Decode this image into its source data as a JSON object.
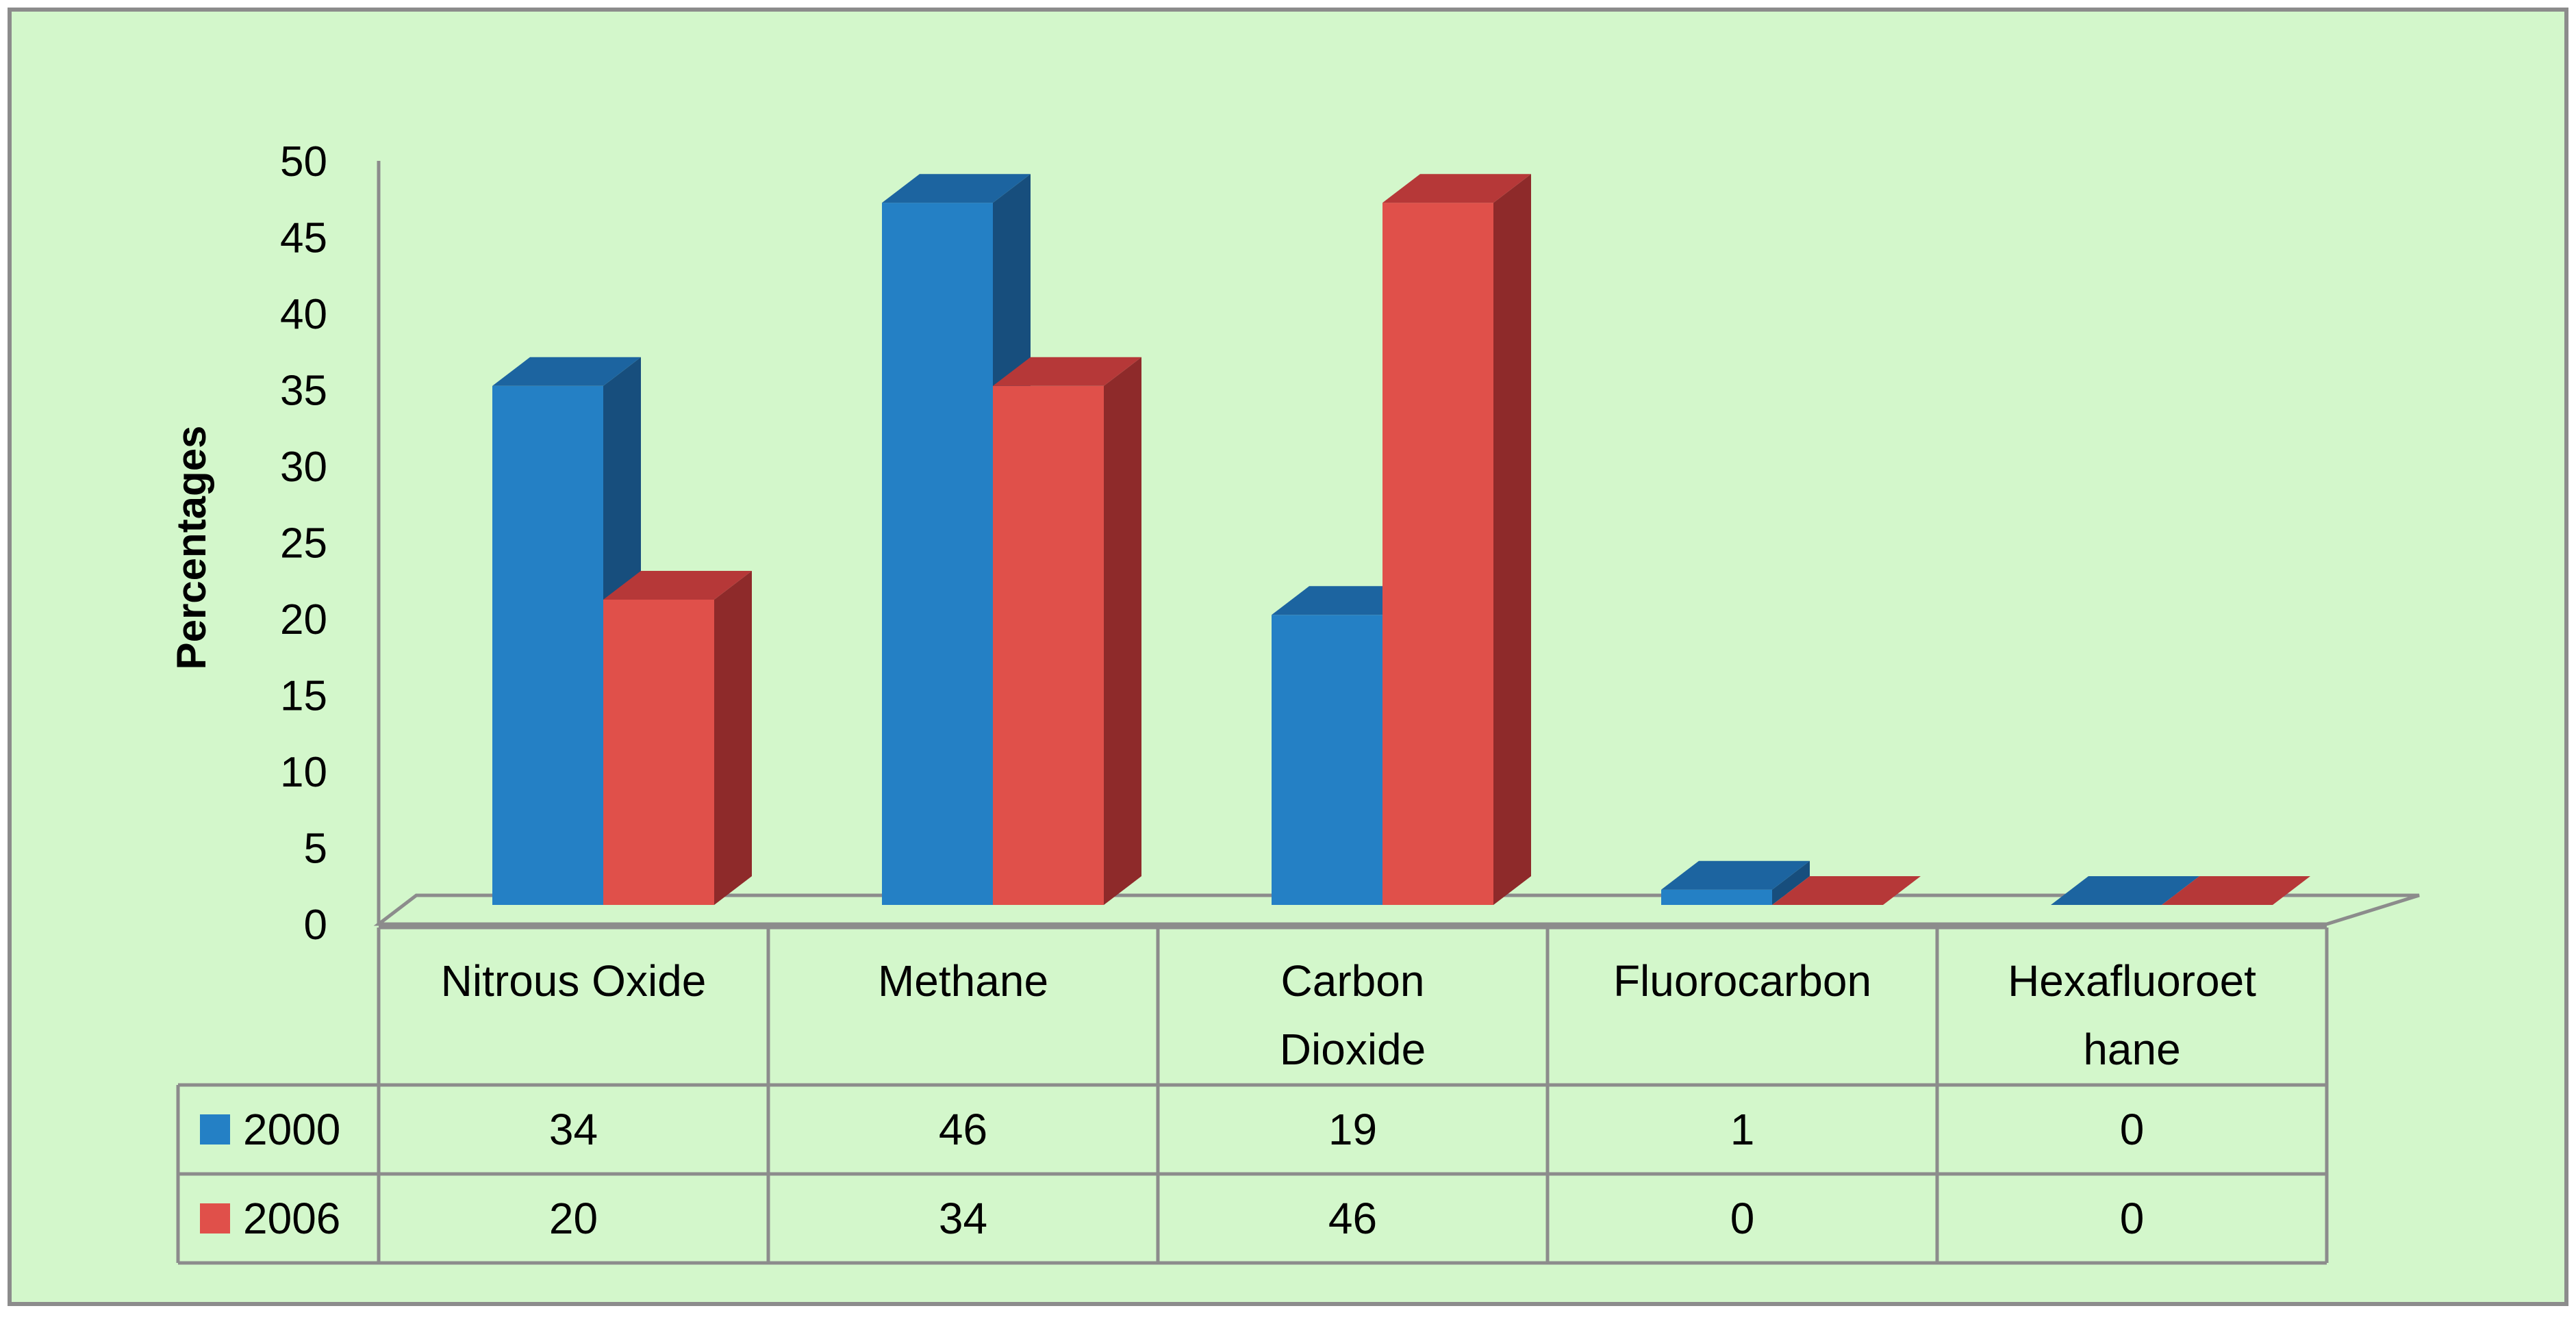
{
  "chart_data": {
    "type": "bar",
    "style": "3d-clustered-column-with-data-table",
    "title": "",
    "xlabel": "",
    "ylabel": "Percentages",
    "ylim": [
      0,
      50
    ],
    "yticks": [
      0,
      5,
      10,
      15,
      20,
      25,
      30,
      35,
      40,
      45,
      50
    ],
    "grid": false,
    "legend": "data-table-left",
    "categories": [
      [
        "Nitrous Oxide"
      ],
      [
        "Methane"
      ],
      [
        "Carbon",
        "Dioxide"
      ],
      [
        "Fluorocarbon"
      ],
      [
        "Hexafluoroet",
        "hane"
      ]
    ],
    "series": [
      {
        "name": "2000",
        "values": [
          34,
          46,
          19,
          1,
          0
        ],
        "color": "#2480c5",
        "side_color": "#174e7d",
        "top_color": "#1c64a0"
      },
      {
        "name": "2006",
        "values": [
          20,
          34,
          46,
          0,
          0
        ],
        "color": "#e0504a",
        "side_color": "#8e2a2a",
        "top_color": "#b63838"
      }
    ],
    "table_values": [
      [
        "34",
        "46",
        "19",
        "1",
        "0"
      ],
      [
        "20",
        "34",
        "46",
        "0",
        "0"
      ]
    ]
  },
  "colors": {
    "background": "#d3f7cb",
    "frame": "#8c8c8c",
    "axis": "#8c8c8c"
  }
}
